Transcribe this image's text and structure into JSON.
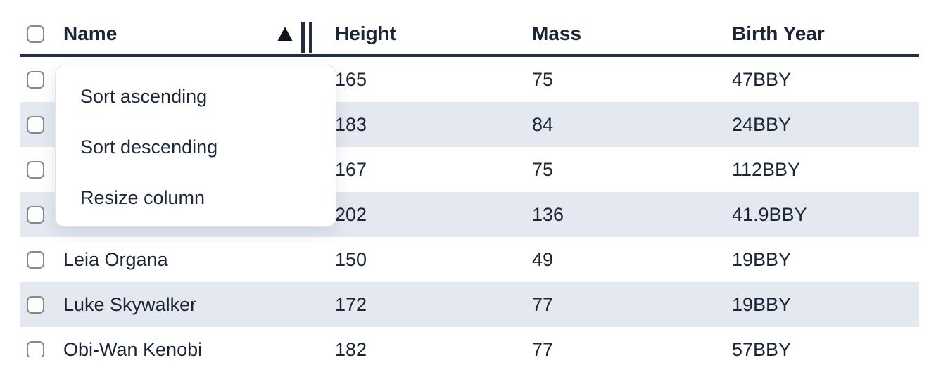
{
  "table": {
    "columns": {
      "name": {
        "label": "Name",
        "sort": "ascending"
      },
      "height": {
        "label": "Height"
      },
      "mass": {
        "label": "Mass"
      },
      "birth": {
        "label": "Birth Year"
      }
    },
    "rows": [
      {
        "name": "",
        "height": "165",
        "mass": "75",
        "birth_year": "47BBY"
      },
      {
        "name": "",
        "height": "183",
        "mass": "84",
        "birth_year": "24BBY"
      },
      {
        "name": "",
        "height": "167",
        "mass": "75",
        "birth_year": "112BBY"
      },
      {
        "name": "",
        "height": "202",
        "mass": "136",
        "birth_year": "41.9BBY"
      },
      {
        "name": "Leia Organa",
        "height": "150",
        "mass": "49",
        "birth_year": "19BBY"
      },
      {
        "name": "Luke Skywalker",
        "height": "172",
        "mass": "77",
        "birth_year": "19BBY"
      },
      {
        "name": "Obi-Wan Kenobi",
        "height": "182",
        "mass": "77",
        "birth_year": "57BBY"
      }
    ]
  },
  "context_menu": {
    "items": [
      {
        "label": "Sort ascending"
      },
      {
        "label": "Sort descending"
      },
      {
        "label": "Resize column"
      }
    ]
  },
  "colors": {
    "striped_row": "#e3e8f1",
    "header_border": "#24303f",
    "text": "#1b2533",
    "menu_border": "#e4e5e9",
    "checkbox_border": "#85888d"
  }
}
